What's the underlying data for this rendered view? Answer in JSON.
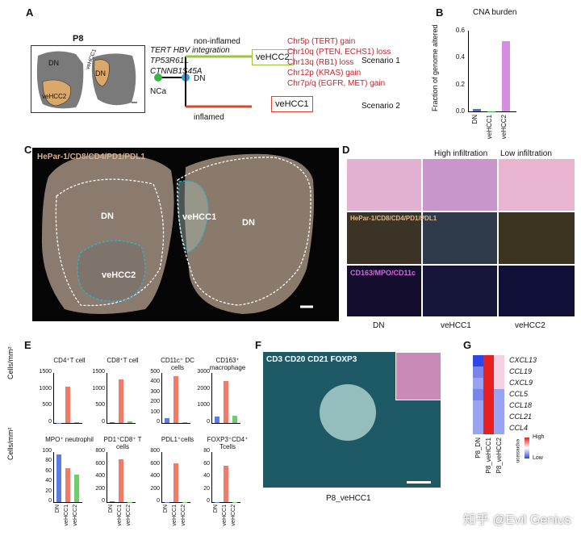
{
  "panel_labels": {
    "A": "A",
    "B": "B",
    "C": "C",
    "D": "D",
    "E": "E",
    "F": "F",
    "G": "G"
  },
  "panelA": {
    "title": "P8",
    "dn": "DN",
    "vehcc1": "veHCC1",
    "vehcc2": "veHCC2",
    "dn2": "DN",
    "mutations": [
      "TERT HBV integration",
      "TP53R61L",
      "CTNNB1S45A"
    ],
    "nca": "NCa",
    "dn_node": "DN",
    "non_inflamed": "non-inflamed",
    "inflamed": "inflamed",
    "box_vehcc2": "veHCC2",
    "box_vehcc1": "veHCC1",
    "cna_lines": [
      "Chr5p (TERT) gain",
      "Chr10q (PTEN, ECHS1) loss",
      "Chr13q (RB1) loss",
      "Chr12p (KRAS) gain",
      "Chr7p/q (EGFR, MET) gain"
    ],
    "scenario1": "Scenario 1",
    "scenario2": "Scenario 2"
  },
  "chart_data": [
    {
      "type": "bar",
      "title": "CNA burden",
      "ylabel": "Fraction of genome altered",
      "categories": [
        "DN",
        "veHCC1",
        "veHCC2"
      ],
      "values": [
        0.02,
        0.0,
        0.52
      ],
      "ylim": [
        0,
        0.6
      ],
      "yticks": [
        "0.0",
        "0.2",
        "0.4",
        "0.6"
      ],
      "colors": [
        "#4a6fe3",
        "#2fb34a",
        "#d48de0"
      ]
    },
    {
      "type": "bar",
      "title": "CD4⁺T cell",
      "categories": [
        "DN",
        "veHCC1",
        "veHCC2"
      ],
      "values": [
        10,
        1100,
        15
      ],
      "ylim": [
        0,
        1500
      ],
      "yticks": [
        "0",
        "500",
        "1000",
        "1500"
      ]
    },
    {
      "type": "bar",
      "title": "CD8⁺T cell",
      "categories": [
        "DN",
        "veHCC1",
        "veHCC2"
      ],
      "values": [
        20,
        1300,
        40
      ],
      "ylim": [
        0,
        1500
      ],
      "yticks": [
        "0",
        "500",
        "1000",
        "1500"
      ]
    },
    {
      "type": "bar",
      "title": "CD11c⁺ DC cells",
      "categories": [
        "DN",
        "veHCC1",
        "veHCC2"
      ],
      "values": [
        50,
        470,
        10
      ],
      "ylim": [
        0,
        500
      ],
      "yticks": [
        "0",
        "100",
        "200",
        "300",
        "400",
        "500"
      ]
    },
    {
      "type": "bar",
      "title": "CD163⁺ macrophage",
      "categories": [
        "DN",
        "veHCC1",
        "veHCC2"
      ],
      "values": [
        380,
        2500,
        450
      ],
      "ylim": [
        0,
        3000
      ],
      "yticks": [
        "0",
        "1000",
        "2000",
        "3000"
      ]
    },
    {
      "type": "bar",
      "title": "MPO⁺ neutrophil",
      "categories": [
        "DN",
        "veHCC1",
        "veHCC2"
      ],
      "values": [
        95,
        68,
        55
      ],
      "ylim": [
        0,
        100
      ],
      "yticks": [
        "0",
        "20",
        "40",
        "60",
        "80",
        "100"
      ]
    },
    {
      "type": "bar",
      "title": "PD1⁺CD8⁺ T cells",
      "categories": [
        "DN",
        "veHCC1",
        "veHCC2"
      ],
      "values": [
        10,
        690,
        5
      ],
      "ylim": [
        0,
        800
      ],
      "yticks": [
        "0",
        "200",
        "400",
        "600",
        "800"
      ]
    },
    {
      "type": "bar",
      "title": "PDL1⁺cells",
      "categories": [
        "DN",
        "veHCC1",
        "veHCC2"
      ],
      "values": [
        0,
        620,
        0
      ],
      "ylim": [
        0,
        800
      ],
      "yticks": [
        "0",
        "200",
        "400",
        "600",
        "800"
      ]
    },
    {
      "type": "bar",
      "title": "FOXP3⁺CD4⁺ Tcells",
      "categories": [
        "DN",
        "veHCC1",
        "veHCC2"
      ],
      "values": [
        0,
        58,
        0
      ],
      "ylim": [
        0,
        80
      ],
      "yticks": [
        "0",
        "20",
        "40",
        "60",
        "80"
      ]
    }
  ],
  "panelE": {
    "ylabel": "Cells/mm²",
    "x_labels": [
      "DN",
      "veHCC1",
      "veHCC2"
    ]
  },
  "panelC": {
    "legend": "HePar-1/CD8/CD4/PD1/PDL1",
    "dn_left": "DN",
    "vehcc2": "veHCC2",
    "vehcc1": "veHCC1",
    "dn_right": "DN"
  },
  "panelD": {
    "high": "High infiltration",
    "low": "Low infiltration",
    "legend1": "HePar-1/CD8/CD4/PD1/PDL1",
    "legend2": "CD163/MPO/CD11c",
    "cols": [
      "DN",
      "veHCC1",
      "veHCC2"
    ]
  },
  "panelF": {
    "legend": "CD3 CD20 CD21 FOXP3",
    "caption": "P8_veHCC1"
  },
  "panelG": {
    "genes": [
      "CXCL13",
      "CCL19",
      "CXCL9",
      "CCL5",
      "CCL18",
      "CCL21",
      "CCL4"
    ],
    "samples": [
      "P8_DN",
      "P8_veHCC1",
      "P8_veHCC2"
    ],
    "legend_high": "High",
    "legend_low": "Low",
    "legend_title": "expression",
    "values": [
      [
        0.1,
        1,
        0.55
      ],
      [
        0.3,
        1,
        0.6
      ],
      [
        0.35,
        1,
        0.55
      ],
      [
        0.3,
        1,
        0.5
      ],
      [
        0.35,
        1,
        0.5
      ],
      [
        0.4,
        1,
        0.45
      ],
      [
        0.35,
        1,
        0.5
      ]
    ]
  },
  "watermark": "知乎 @Evil Genius"
}
